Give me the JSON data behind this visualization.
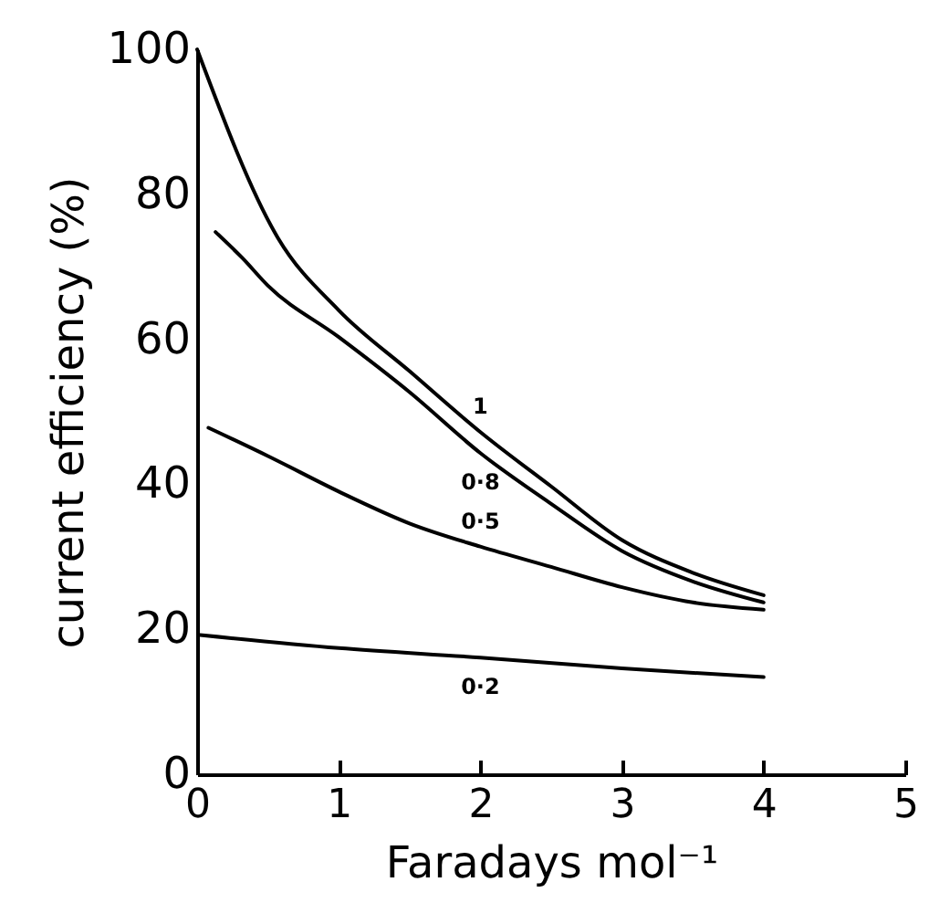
{
  "chart_data": {
    "type": "line",
    "xlabel": "Faradays mol⁻¹",
    "ylabel": "current efficiency (%)",
    "xlim": [
      0,
      5
    ],
    "xticks": [
      0,
      1,
      2,
      3,
      4,
      5
    ],
    "ylim": [
      0,
      100
    ],
    "yticks": [
      0,
      20,
      40,
      60,
      80,
      100
    ],
    "grid": false,
    "legend": false,
    "marker": "none",
    "line_style": "solid",
    "series": [
      {
        "name": "1",
        "color": "#000000",
        "x": [
          0,
          0.57,
          1,
          1.5,
          2,
          2.5,
          3,
          3.5,
          4
        ],
        "values": [
          100,
          74,
          64,
          55.6,
          47.2,
          39.7,
          32.3,
          27.8,
          24.7
        ]
      },
      {
        "name": "0·8",
        "color": "#000000",
        "x": [
          0.13,
          0.32,
          0.5,
          1,
          1.5,
          2,
          2.5,
          3,
          3.5,
          4
        ],
        "values": [
          74.8,
          71.2,
          67.4,
          60.3,
          52.7,
          44.3,
          37.3,
          30.8,
          26.6,
          23.7
        ]
      },
      {
        "name": "0·5",
        "color": "#000000",
        "x": [
          0.08,
          0.5,
          1,
          1.5,
          2,
          2.5,
          3,
          3.5,
          4
        ],
        "values": [
          47.8,
          43.9,
          39,
          34.6,
          31.4,
          28.6,
          25.8,
          23.7,
          22.7
        ]
      },
      {
        "name": "0·2",
        "color": "#000000",
        "x": [
          0.02,
          1,
          2,
          3,
          4
        ],
        "values": [
          19.2,
          17.4,
          16.1,
          14.6,
          13.4
        ]
      }
    ]
  }
}
